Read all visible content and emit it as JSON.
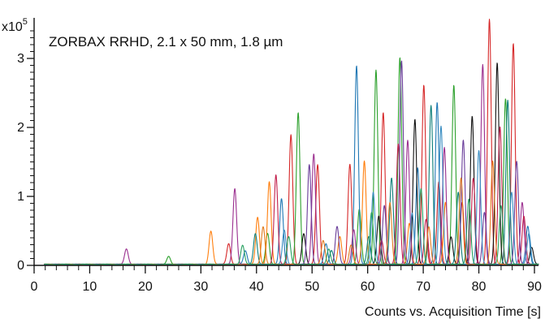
{
  "chart_data": {
    "type": "line",
    "annotation": "ZORBAX RRHD, 2.1 x 50 mm, 1.8 µm",
    "xlabel": "Counts vs. Acquisition Time [s]",
    "y_multiplier": "x10",
    "y_multiplier_exp": "5",
    "xlim": [
      0,
      91
    ],
    "ylim": [
      -0.05,
      3.55
    ],
    "x_ticks": [
      0,
      10,
      20,
      30,
      40,
      50,
      60,
      70,
      80,
      90
    ],
    "y_ticks": [
      0,
      1,
      2,
      3
    ],
    "grid": false,
    "legend": "none",
    "baseline": 0.015,
    "series": [
      {
        "color": "#d62728",
        "peaks": [
          [
            35,
            0.3
          ],
          [
            46.2,
            1.88
          ],
          [
            51.0,
            1.45
          ],
          [
            56.8,
            1.45
          ],
          [
            62.8,
            2.2
          ],
          [
            70.1,
            2.6
          ],
          [
            81.9,
            3.55
          ],
          [
            86.2,
            3.2
          ],
          [
            72.8,
            1.2
          ],
          [
            77.0,
            0.9
          ]
        ]
      },
      {
        "color": "#2ca02c",
        "peaks": [
          [
            24.2,
            0.12
          ],
          [
            47.5,
            2.2
          ],
          [
            61.5,
            2.82
          ],
          [
            65.8,
            3.0
          ],
          [
            75.5,
            2.6
          ],
          [
            84.8,
            2.4
          ],
          [
            42.0,
            0.45
          ],
          [
            58.5,
            0.8
          ]
        ]
      },
      {
        "color": "#1f77b4",
        "peaks": [
          [
            58.0,
            2.88
          ],
          [
            72.5,
            2.35
          ],
          [
            44.5,
            0.95
          ],
          [
            52.5,
            0.3
          ],
          [
            69.0,
            1.4
          ],
          [
            88.8,
            0.55
          ],
          [
            38.0,
            0.2
          ]
        ]
      },
      {
        "color": "#ff7f0e",
        "peaks": [
          [
            31.8,
            0.48
          ],
          [
            42.3,
            1.2
          ],
          [
            59.4,
            1.5
          ],
          [
            40.2,
            0.68
          ],
          [
            55.0,
            0.4
          ],
          [
            74.0,
            0.9
          ],
          [
            67.5,
            0.6
          ]
        ]
      },
      {
        "color": "#111111",
        "peaks": [
          [
            48.5,
            0.45
          ],
          [
            62.0,
            0.7
          ],
          [
            68.5,
            2.1
          ],
          [
            78.8,
            2.15
          ],
          [
            83.3,
            2.92
          ],
          [
            75.0,
            0.4
          ],
          [
            89.5,
            0.25
          ]
        ]
      },
      {
        "color": "#9b2f8f",
        "peaks": [
          [
            16.6,
            0.22
          ],
          [
            36.1,
            1.1
          ],
          [
            50.3,
            1.6
          ],
          [
            80.7,
            2.9
          ],
          [
            67.2,
            1.8
          ],
          [
            87.8,
            0.9
          ],
          [
            57.5,
            0.5
          ],
          [
            73.8,
            1.7
          ]
        ]
      },
      {
        "color": "#0f7f7a",
        "peaks": [
          [
            39.8,
            0.45
          ],
          [
            64.3,
            1.25
          ],
          [
            71.4,
            2.3
          ],
          [
            85.2,
            2.38
          ],
          [
            76.3,
            1.05
          ],
          [
            60.2,
            0.4
          ],
          [
            53.5,
            0.2
          ]
        ]
      },
      {
        "color": "#c21f4c",
        "peaks": [
          [
            43.5,
            1.3
          ],
          [
            65.5,
            1.75
          ],
          [
            83.8,
            2.0
          ],
          [
            79.0,
            1.25
          ],
          [
            70.5,
            0.65
          ],
          [
            88.1,
            0.7
          ],
          [
            62.5,
            0.35
          ]
        ]
      },
      {
        "color": "#6a3d9a",
        "peaks": [
          [
            49.5,
            1.45
          ],
          [
            54.5,
            0.55
          ],
          [
            66.1,
            2.95
          ],
          [
            77.2,
            1.8
          ],
          [
            86.8,
            1.5
          ],
          [
            63.0,
            0.85
          ],
          [
            81.0,
            0.75
          ]
        ]
      },
      {
        "color": "#3b8ec2",
        "peaks": [
          [
            45.0,
            0.5
          ],
          [
            61.0,
            1.05
          ],
          [
            73.2,
            2.0
          ],
          [
            80.0,
            1.65
          ],
          [
            68.0,
            0.75
          ],
          [
            85.9,
            1.05
          ],
          [
            89.0,
            0.45
          ]
        ]
      },
      {
        "color": "#e07b20",
        "peaks": [
          [
            41.2,
            0.55
          ],
          [
            52.0,
            0.35
          ],
          [
            64.0,
            0.9
          ],
          [
            76.8,
            1.25
          ],
          [
            82.5,
            1.5
          ],
          [
            71.0,
            0.55
          ],
          [
            57.0,
            0.28
          ]
        ]
      },
      {
        "color": "#27a060",
        "peaks": [
          [
            37.5,
            0.28
          ],
          [
            45.8,
            0.4
          ],
          [
            60.7,
            0.75
          ],
          [
            69.6,
            1.1
          ],
          [
            78.2,
            0.95
          ],
          [
            84.0,
            0.85
          ],
          [
            53.0,
            0.22
          ]
        ]
      }
    ]
  }
}
